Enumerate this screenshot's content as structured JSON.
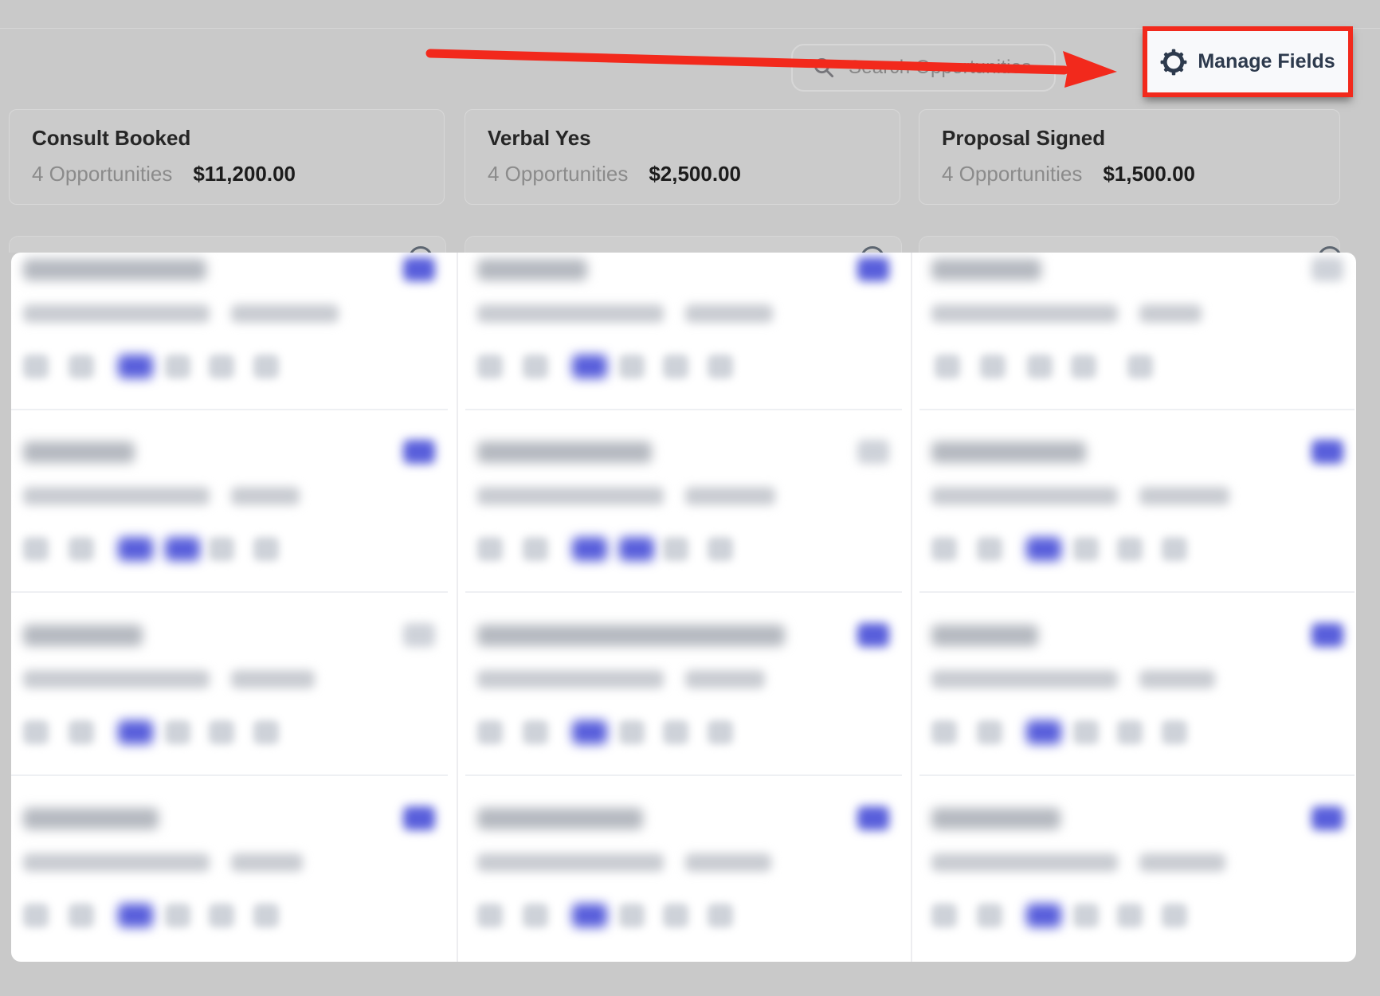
{
  "toolbar": {
    "search_placeholder": "Search Opportunities",
    "manage_fields_label": "Manage Fields"
  },
  "annotation": {
    "highlight_color": "#f2291c",
    "arrow_color": "#f2291c",
    "note": "red arrow pointing to highlighted Manage Fields button"
  },
  "stages": [
    {
      "name": "Consult Booked",
      "count_label": "4 Opportunities",
      "value": "$11,200.00"
    },
    {
      "name": "Verbal Yes",
      "count_label": "4 Opportunities",
      "value": "$2,500.00"
    },
    {
      "name": "Proposal Signed",
      "count_label": "4 Opportunities",
      "value": "$1,500.00"
    }
  ],
  "board": {
    "redaction_note": "opportunity cards are privacy-blurred; bars approximate blurred text",
    "columns": [
      {
        "stage": "Consult Booked",
        "cards": [
          {
            "name_w": 230,
            "value2_w": 135,
            "badge": "blue",
            "icons": [
              "gray",
              "gray",
              "blue",
              "gray",
              "gray",
              "gray"
            ]
          },
          {
            "name_w": 140,
            "value2_w": 86,
            "badge": "blue",
            "icons": [
              "gray",
              "gray",
              "blue",
              "blue",
              "gray",
              "gray"
            ]
          },
          {
            "name_w": 150,
            "value2_w": 105,
            "badge": "gray",
            "icons": [
              "gray",
              "gray",
              "blue",
              "gray",
              "gray",
              "gray"
            ]
          },
          {
            "name_w": 170,
            "value2_w": 90,
            "badge": "blue",
            "icons": [
              "gray",
              "gray",
              "blue",
              "gray",
              "gray",
              "gray"
            ]
          }
        ]
      },
      {
        "stage": "Verbal Yes",
        "cards": [
          {
            "name_w": 138,
            "value2_w": 110,
            "badge": "blue",
            "icons": [
              "gray",
              "gray",
              "blue",
              "gray",
              "gray",
              "gray"
            ]
          },
          {
            "name_w": 219,
            "value2_w": 113,
            "badge": "gray",
            "icons": [
              "gray",
              "gray",
              "blue",
              "blue",
              "gray",
              "gray"
            ]
          },
          {
            "name_w": 386,
            "value2_w": 100,
            "badge": "blue",
            "icons": [
              "gray",
              "gray",
              "blue",
              "gray",
              "gray",
              "gray"
            ]
          },
          {
            "name_w": 208,
            "value2_w": 108,
            "badge": "blue",
            "icons": [
              "gray",
              "gray",
              "blue",
              "gray",
              "gray",
              "gray"
            ]
          }
        ]
      },
      {
        "stage": "Proposal Signed",
        "cards": [
          {
            "name_w": 138,
            "value2_w": 78,
            "badge": "gray",
            "icons": [
              "gray",
              "gray",
              "gray",
              "gray",
              "gray"
            ]
          },
          {
            "name_w": 194,
            "value2_w": 113,
            "badge": "blue",
            "icons": [
              "gray",
              "gray",
              "blue",
              "gray",
              "gray",
              "gray"
            ]
          },
          {
            "name_w": 134,
            "value2_w": 95,
            "badge": "blue",
            "icons": [
              "gray",
              "gray",
              "blue",
              "gray",
              "gray",
              "gray"
            ]
          },
          {
            "name_w": 162,
            "value2_w": 108,
            "badge": "blue",
            "icons": [
              "gray",
              "gray",
              "blue",
              "gray",
              "gray",
              "gray"
            ]
          }
        ]
      }
    ]
  },
  "colors": {
    "page_dim_gray": "#c9c9c9",
    "panel_white": "#ffffff",
    "accent_blue": "#585edb",
    "button_text_navy": "#2d3a4d",
    "annotation_red": "#f2291c"
  }
}
